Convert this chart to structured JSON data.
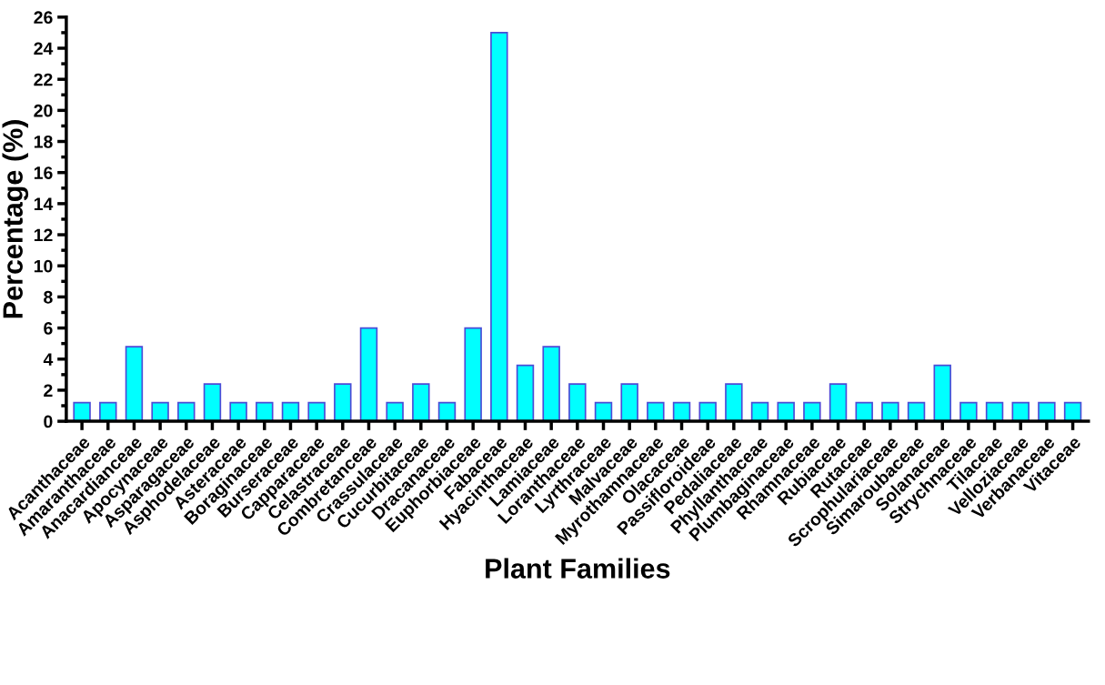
{
  "chart_data": {
    "type": "bar",
    "xlabel": "Plant Families",
    "ylabel": "Percentage (%)",
    "categories": [
      "Acanthaceae",
      "Amaranthaceae",
      "Anacardianceae",
      "Apocynaceae",
      "Asparagaceae",
      "Asphodelaceae",
      "Asteraceae",
      "Boraginaceae",
      "Burseraceae",
      "Capparaceae",
      "Celastraceae",
      "Combretanceae",
      "Crassulaceae",
      "Cucurbitaceae",
      "Dracanaceae",
      "Euphorbiaceae",
      "Fabaceae",
      "Hyacinthaceae",
      "Lamiaceae",
      "Loranthaceae",
      "Lyrthraceae",
      "Malvaceae",
      "Myrothamnaceae",
      "Olacaceae",
      "Passifloroideae",
      "Pedaliaceae",
      "Phyllanthaceae",
      "Plumbaginaceae",
      "Rhamnaceae",
      "Rubiaceae",
      "Rutaceae",
      "Scrophulariaceae",
      "Simaroubaceae",
      "Solanaceae",
      "Strychnaceae",
      "Tilaceae",
      "Velloziaceae",
      "Verbanaceae",
      "Vitaceae"
    ],
    "values": [
      1.2,
      1.2,
      4.8,
      1.2,
      1.2,
      2.4,
      1.2,
      1.2,
      1.2,
      1.2,
      2.4,
      6,
      1.2,
      2.4,
      1.2,
      6,
      25,
      3.6,
      4.8,
      2.4,
      1.2,
      2.4,
      1.2,
      1.2,
      1.2,
      2.4,
      1.2,
      1.2,
      1.2,
      2.4,
      1.2,
      1.2,
      1.2,
      3.6,
      1.2,
      1.2,
      1.2,
      1.2,
      1.2
    ],
    "color": "#00ffff",
    "ylim": [
      0,
      26
    ],
    "yticks": [
      0,
      2,
      4,
      6,
      8,
      10,
      12,
      14,
      16,
      18,
      20,
      22,
      24,
      26
    ],
    "grid": false
  }
}
